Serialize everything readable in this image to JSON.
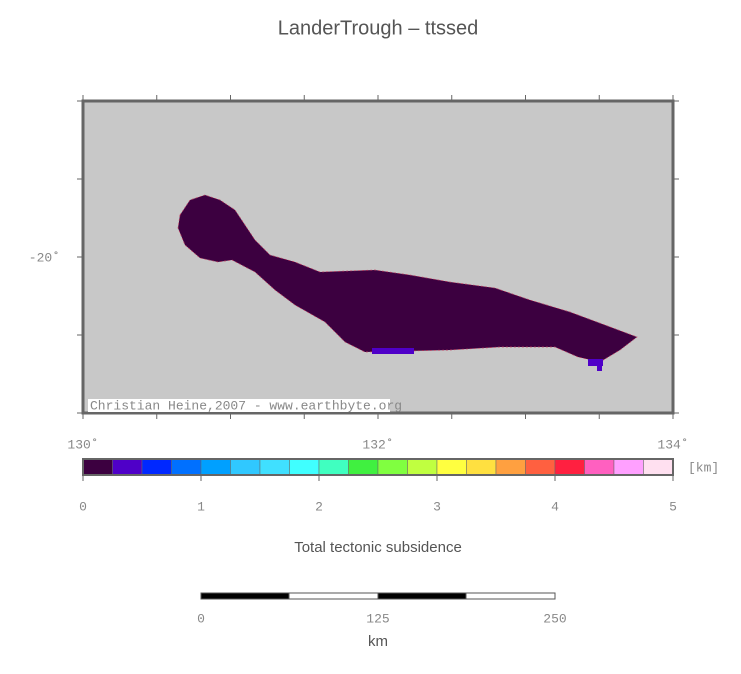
{
  "header": {
    "title": "LanderTrough – ttssed"
  },
  "map": {
    "x_labels": [
      "130˚",
      "132˚",
      "134˚"
    ],
    "y_labels": [
      "-20˚"
    ],
    "credit": "Christian Heine,2007 - www.earthbyte.org"
  },
  "colorbar": {
    "colors": [
      "#3c0040",
      "#4f00c8",
      "#0028ff",
      "#0070ff",
      "#00a0ff",
      "#30c8ff",
      "#40e0ff",
      "#40ffff",
      "#40ffc0",
      "#40f040",
      "#80ff40",
      "#c0ff40",
      "#ffff40",
      "#ffe040",
      "#ffa040",
      "#ff6040",
      "#ff2040",
      "#ff60c0",
      "#ffa0ff",
      "#ffe0f0"
    ],
    "tick_labels": [
      "0",
      "1",
      "2",
      "3",
      "4",
      "5"
    ],
    "unit": "[km]",
    "label": "Total tectonic subsidence"
  },
  "scale_bar": {
    "tick_labels": [
      "0",
      "125",
      "250"
    ],
    "unit": "km"
  }
}
